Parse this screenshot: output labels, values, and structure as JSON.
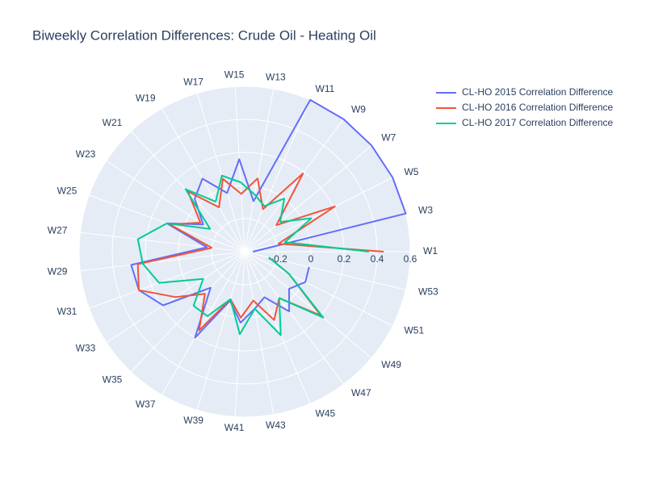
{
  "chart_data": {
    "type": "polar_line",
    "title": "Biweekly Correlation Differences: Crude Oil - Heating Oil",
    "categories": [
      "W1",
      "W3",
      "W5",
      "W7",
      "W9",
      "W11",
      "W13",
      "W15",
      "W17",
      "W19",
      "W21",
      "W23",
      "W25",
      "W27",
      "W29",
      "W31",
      "W33",
      "W35",
      "W37",
      "W39",
      "W41",
      "W43",
      "W45",
      "W47",
      "W49",
      "W51",
      "W53"
    ],
    "rlim": [
      -0.4,
      0.6
    ],
    "rticks": [
      {
        "value": -0.2,
        "label": "−0.2"
      },
      0,
      0.2,
      0.4,
      0.6
    ],
    "grid": true,
    "legend": "right",
    "series": [
      {
        "name": "CL-HO 2015 Correlation Difference",
        "color": "#636efa",
        "values": [
          -0.35,
          0.6,
          0.6,
          0.6,
          0.6,
          0.6,
          -0.09,
          0.16,
          -0.03,
          0.11,
          0.04,
          -0.1,
          0.1,
          -0.17,
          0.29,
          0.28,
          0.19,
          -0.1,
          0.2,
          -0.09,
          0.03,
          -0.05,
          -0.1,
          0.05,
          -0.05,
          0.01,
          0.0
        ]
      },
      {
        "name": "CL-HO 2016 Correlation Difference",
        "color": "#ef553b",
        "values": [
          0.44,
          -0.19,
          0.21,
          -0.15,
          0.19,
          -0.12,
          0.05,
          -0.05,
          0.06,
          -0.09,
          0.1,
          -0.08,
          0.08,
          -0.2,
          0.25,
          0.28,
          0.1,
          -0.05,
          0.15,
          -0.1,
          0.0,
          -0.1,
          0.05,
          -0.05,
          0.2,
          -0.1,
          -0.25
        ]
      },
      {
        "name": "CL-HO 2017 Correlation Difference",
        "color": "#00cc96",
        "values": [
          0.35,
          -0.15,
          0.05,
          -0.12,
          0.0,
          -0.1,
          -0.05,
          0.02,
          0.08,
          -0.05,
          0.12,
          -0.15,
          0.1,
          0.25,
          0.22,
          0.15,
          -0.1,
          0.05,
          0.05,
          -0.1,
          0.1,
          -0.05,
          0.15,
          -0.05,
          0.22,
          -0.1,
          -0.25
        ]
      }
    ]
  }
}
